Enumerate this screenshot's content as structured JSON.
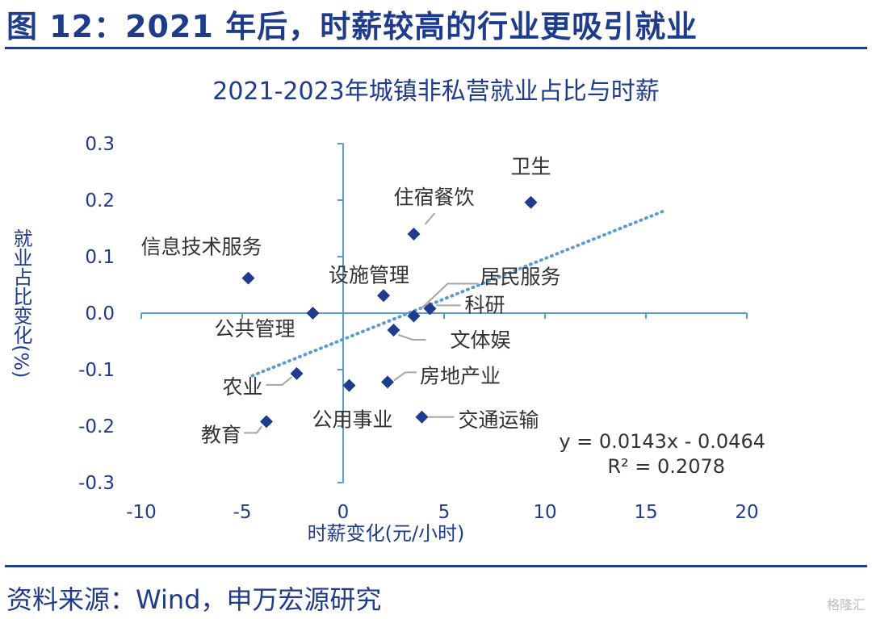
{
  "figure_title": "图 12：2021 年后，时薪较高的行业更吸引就业",
  "source_text": "资料来源：Wind，申万宏源研究",
  "watermark_text": "格隆汇",
  "colors": {
    "title": "#1f3b8c",
    "axis": "#5b9bd5",
    "marker": "#1f3b8c",
    "trend": "#5b9bd5",
    "leader": "#a6a6a6"
  },
  "chart_data": {
    "type": "scatter",
    "title": "2021-2023年城镇非私营就业占比与时薪",
    "xlabel": "时薪变化(元/小时)",
    "ylabel": "就业占比变化(%)",
    "xlim": [
      -10,
      20
    ],
    "ylim": [
      -0.3,
      0.3
    ],
    "xticks": [
      -10,
      -5,
      0,
      5,
      10,
      15,
      20
    ],
    "yticks": [
      0.3,
      0.2,
      0.1,
      0.0,
      -0.1,
      -0.2,
      -0.3
    ],
    "ytick_labels": [
      "0.3",
      "0.2",
      "0.1",
      "0.0",
      "-0.1",
      "-0.2",
      "-0.3"
    ],
    "grid": false,
    "points": [
      {
        "label": "卫生",
        "x": 9.3,
        "y": 0.196
      },
      {
        "label": "住宿餐饮",
        "x": 3.5,
        "y": 0.14
      },
      {
        "label": "信息技术服务",
        "x": -4.7,
        "y": 0.062
      },
      {
        "label": "设施管理",
        "x": 2.0,
        "y": 0.031
      },
      {
        "label": "居民服务",
        "x": 3.5,
        "y": -0.005
      },
      {
        "label": "科研",
        "x": 4.3,
        "y": 0.008
      },
      {
        "label": "公共管理",
        "x": -1.5,
        "y": 0.0
      },
      {
        "label": "文体娱",
        "x": 2.5,
        "y": -0.03
      },
      {
        "label": "农业",
        "x": -2.3,
        "y": -0.107
      },
      {
        "label": "公用事业",
        "x": 0.3,
        "y": -0.128
      },
      {
        "label": "房地产业",
        "x": 2.2,
        "y": -0.122
      },
      {
        "label": "交通运输",
        "x": 3.9,
        "y": -0.184
      },
      {
        "label": "教育",
        "x": -3.8,
        "y": -0.192
      }
    ],
    "trendline": {
      "slope": 0.0143,
      "intercept": -0.0464,
      "x_range": [
        -4.5,
        16
      ]
    },
    "equation_lines": [
      "y = 0.0143x - 0.0464",
      "R² = 0.2078"
    ]
  }
}
